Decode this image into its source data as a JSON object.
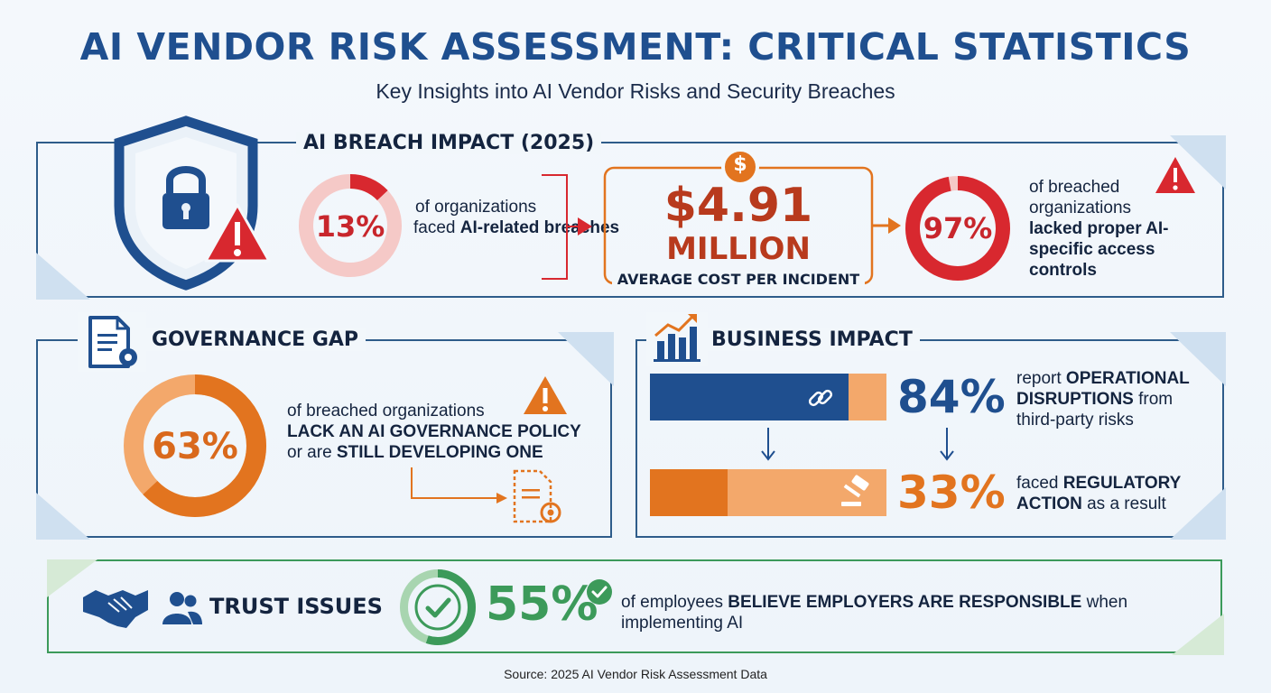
{
  "header": {
    "title": "AI VENDOR RISK ASSESSMENT: CRITICAL STATISTICS",
    "subtitle": "Key Insights into AI Vendor Risks and Security Breaches"
  },
  "breach_impact": {
    "title": "AI BREACH IMPACT (2025)",
    "stat1": {
      "value": "13%",
      "fraction": 0.13,
      "text_a": "of organizations",
      "text_b": "faced ",
      "text_bold": "AI-related breaches"
    },
    "cost": {
      "currency_symbol": "$",
      "value": "$4.91",
      "unit": "MILLION",
      "caption": "AVERAGE COST PER INCIDENT"
    },
    "stat2": {
      "value": "97%",
      "fraction": 0.97,
      "text_a": "of breached",
      "text_b": "organizations",
      "text_bold_1": "lacked proper AI-",
      "text_bold_2": "specific access",
      "text_bold_3": "controls"
    }
  },
  "governance": {
    "title": "GOVERNANCE GAP",
    "value": "63%",
    "fraction": 0.63,
    "line1": "of breached organizations",
    "line2_bold": "LACK AN AI GOVERNANCE POLICY",
    "line3_a": "or are ",
    "line3_bold": "STILL DEVELOPING ONE"
  },
  "business": {
    "title": "BUSINESS IMPACT",
    "stat1": {
      "value": "84%",
      "fraction": 0.84,
      "line1_a": "report ",
      "line1_bold": "OPERATIONAL",
      "line2_bold": "DISRUPTIONS",
      "line2_b": " from",
      "line3": "third-party risks"
    },
    "stat2": {
      "value": "33%",
      "fraction": 0.33,
      "line1_a": "faced ",
      "line1_bold": "REGULATORY",
      "line2_bold": "ACTION",
      "line2_b": " as a result"
    }
  },
  "trust": {
    "title": "TRUST ISSUES",
    "value": "55%",
    "fraction": 0.55,
    "line1_a": "of employees ",
    "line1_bold": "BELIEVE EMPLOYERS ARE RESPONSIBLE",
    "line1_b": " when",
    "line2": "implementing AI"
  },
  "source": "Source: 2025 AI Vendor Risk Assessment Data",
  "colors": {
    "navy": "#1f4f8f",
    "red": "#d8282f",
    "orange": "#e2741f",
    "green": "#3c9a5a",
    "light_orange": "#f3a86b"
  }
}
